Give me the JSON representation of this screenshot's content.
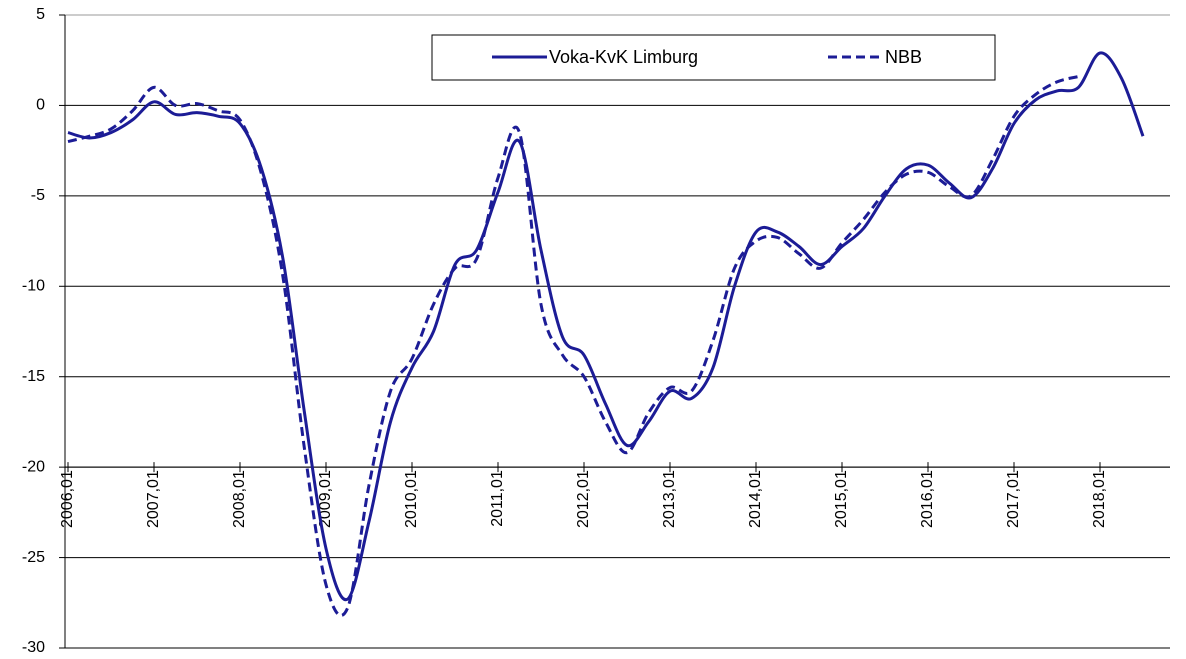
{
  "chart_data": {
    "type": "line",
    "categories": [
      "2006,01",
      null,
      null,
      null,
      "2007,01",
      null,
      null,
      null,
      "2008,01",
      null,
      null,
      null,
      "2009,01",
      null,
      null,
      null,
      "2010,01",
      null,
      null,
      null,
      "2011,01",
      null,
      null,
      null,
      "2012,01",
      null,
      null,
      null,
      "2013,01",
      null,
      null,
      null,
      "2014,01",
      null,
      null,
      null,
      "2015,01",
      null,
      null,
      null,
      "2016,01",
      null,
      null,
      null,
      "2017,01",
      null,
      null,
      null,
      "2018,01",
      null,
      null
    ],
    "series": [
      {
        "name": "Voka-KvK Limburg",
        "color": "#1c1c96",
        "dash": false,
        "values": [
          -1.5,
          -1.8,
          -1.5,
          -0.8,
          0.2,
          -0.5,
          -0.4,
          -0.6,
          -1.0,
          -3.5,
          -8.5,
          -17,
          -24.5,
          -27.3,
          -23,
          -17.5,
          -14.5,
          -12.5,
          -8.8,
          -8.0,
          -4.8,
          -2.0,
          -8,
          -12.8,
          -13.8,
          -16.5,
          -18.8,
          -17.5,
          -15.8,
          -16.2,
          -14.5,
          -10,
          -7.0,
          -7.0,
          -7.8,
          -8.8,
          -7.8,
          -6.8,
          -5,
          -3.5,
          -3.3,
          -4.3,
          -5.1,
          -3.5,
          -1.0,
          0.3,
          0.8,
          1.0,
          2.9,
          1.5,
          -1.7
        ]
      },
      {
        "name": "NBB",
        "color": "#1c1c96",
        "dash": true,
        "values": [
          -2.0,
          -1.7,
          -1.3,
          -0.3,
          1.0,
          0,
          0.1,
          -0.3,
          -0.8,
          -3.8,
          -9.5,
          -19,
          -26.5,
          -27.8,
          -21,
          -15.8,
          -14,
          -11,
          -9,
          -8.5,
          -4,
          -1.5,
          -11,
          -13.8,
          -15,
          -17.5,
          -19.2,
          -17,
          -15.6,
          -15.8,
          -13,
          -9,
          -7.5,
          -7.3,
          -8.2,
          -9.0,
          -7.6,
          -6.3,
          -4.8,
          -3.8,
          -3.7,
          -4.5,
          -5.0,
          -3.0,
          -0.6,
          0.6,
          1.3,
          1.6,
          null,
          null,
          null
        ]
      }
    ],
    "ylim": [
      -30,
      5
    ],
    "yticks": [
      -30,
      -25,
      -20,
      -15,
      -10,
      -5,
      0,
      5
    ],
    "xaxis_at": -20,
    "grid": true,
    "legend": "top"
  }
}
